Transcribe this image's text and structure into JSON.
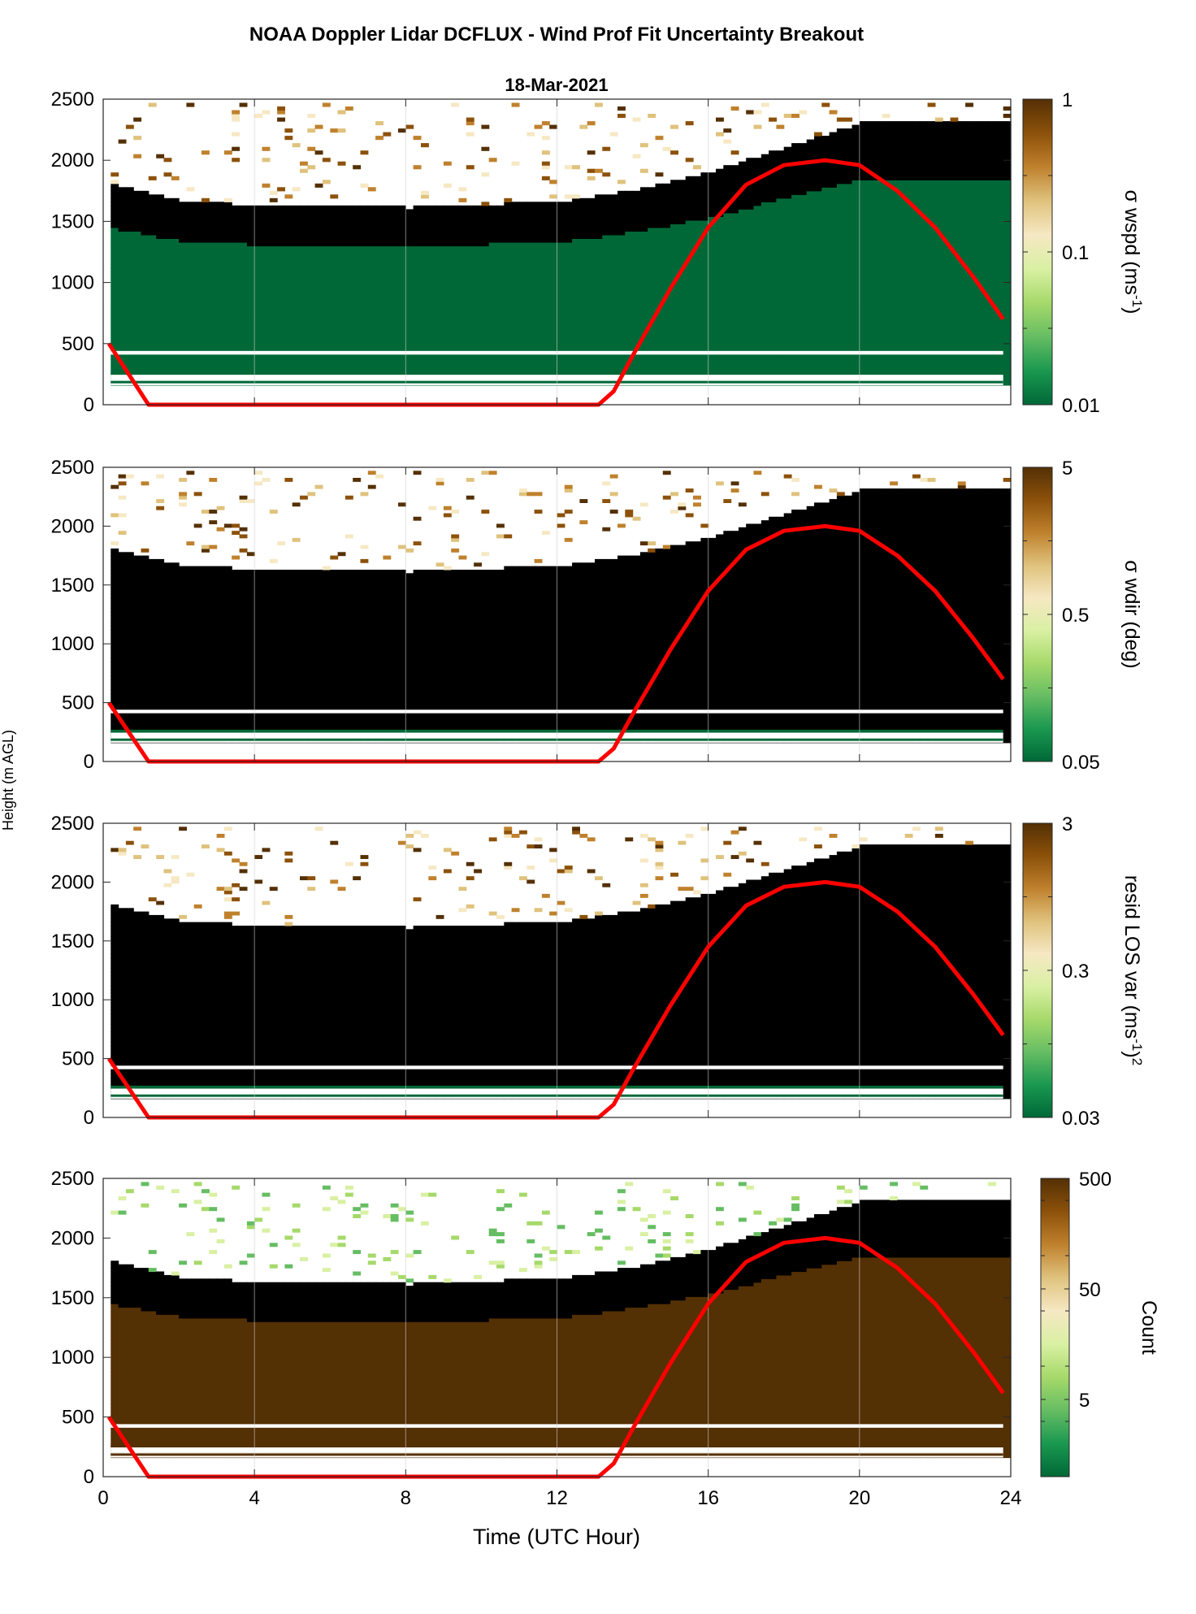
{
  "figure": {
    "title": "NOAA Doppler Lidar DCFLUX - Wind Prof Fit Uncertainty Breakout",
    "subtitle": "18-Mar-2021",
    "xlabel": "Time (UTC Hour)",
    "ylabel": "Height (m AGL)"
  },
  "colors": {
    "overlay_line": "#ff0000",
    "colormap": [
      "#006837",
      "#1a9850",
      "#66bd63",
      "#a6d96a",
      "#d9f0a3",
      "#f6e8c3",
      "#dfc27d",
      "#bf812d",
      "#8c510a",
      "#543005"
    ]
  },
  "chart_data": [
    {
      "type": "heatmap",
      "panel": "wspd",
      "ylabel": "σ wspd (ms-1)",
      "colorbar_label_main": "σ wspd (ms",
      "colorbar_label_sup": "-1",
      "colorbar_label_end": ")",
      "colorbar_scale": "log",
      "colorbar_range": [
        0.01,
        1
      ],
      "colorbar_ticks": [
        "1",
        "0.1",
        "0.01"
      ],
      "xlim": [
        0,
        24
      ],
      "ylim": [
        0,
        2500
      ],
      "yticks": [
        "0",
        "500",
        "1000",
        "1500",
        "2000",
        "2500"
      ],
      "grid": true,
      "invalid_bands_m": [
        [
          175,
          195
        ],
        [
          245,
          265
        ],
        [
          410,
          440
        ]
      ],
      "top_boundary_m": [
        {
          "x": 0,
          "y": 1800
        },
        {
          "x": 2,
          "y": 1650
        },
        {
          "x": 4,
          "y": 1620
        },
        {
          "x": 8,
          "y": 1600
        },
        {
          "x": 12,
          "y": 1650
        },
        {
          "x": 14,
          "y": 1750
        },
        {
          "x": 16,
          "y": 1900
        },
        {
          "x": 18,
          "y": 2100
        },
        {
          "x": 20,
          "y": 2300
        },
        {
          "x": 24,
          "y": 2300
        }
      ]
    },
    {
      "type": "heatmap",
      "panel": "wdir",
      "ylabel": "σ wdir (deg)",
      "colorbar_label_main": "σ wdir (deg)",
      "colorbar_label_sup": "",
      "colorbar_label_end": "",
      "colorbar_scale": "log",
      "colorbar_range": [
        0.05,
        5
      ],
      "colorbar_ticks": [
        "5",
        "0.5",
        "0.05"
      ],
      "xlim": [
        0,
        24
      ],
      "ylim": [
        0,
        2500
      ],
      "yticks": [
        "0",
        "500",
        "1000",
        "1500",
        "2000",
        "2500"
      ],
      "grid": true,
      "invalid_bands_m": [
        [
          175,
          195
        ],
        [
          245,
          265
        ],
        [
          410,
          440
        ]
      ],
      "top_boundary_m": [
        {
          "x": 0,
          "y": 1800
        },
        {
          "x": 2,
          "y": 1650
        },
        {
          "x": 4,
          "y": 1620
        },
        {
          "x": 8,
          "y": 1600
        },
        {
          "x": 12,
          "y": 1650
        },
        {
          "x": 14,
          "y": 1750
        },
        {
          "x": 16,
          "y": 1900
        },
        {
          "x": 18,
          "y": 2100
        },
        {
          "x": 20,
          "y": 2300
        },
        {
          "x": 24,
          "y": 2300
        }
      ]
    },
    {
      "type": "heatmap",
      "panel": "resid",
      "ylabel": "resid LOS var (ms-1)2",
      "colorbar_label_main": "resid LOS var (ms",
      "colorbar_label_sup": "-1",
      "colorbar_label_end": ")",
      "colorbar_label_sup2": "2",
      "colorbar_scale": "log",
      "colorbar_range": [
        0.03,
        3
      ],
      "colorbar_ticks": [
        "3",
        "0.3",
        "0.03"
      ],
      "xlim": [
        0,
        24
      ],
      "ylim": [
        0,
        2500
      ],
      "yticks": [
        "0",
        "500",
        "1000",
        "1500",
        "2000",
        "2500"
      ],
      "grid": true,
      "invalid_bands_m": [
        [
          175,
          195
        ],
        [
          245,
          265
        ],
        [
          410,
          440
        ]
      ],
      "top_boundary_m": [
        {
          "x": 0,
          "y": 1800
        },
        {
          "x": 2,
          "y": 1650
        },
        {
          "x": 4,
          "y": 1620
        },
        {
          "x": 8,
          "y": 1600
        },
        {
          "x": 12,
          "y": 1650
        },
        {
          "x": 14,
          "y": 1750
        },
        {
          "x": 16,
          "y": 1900
        },
        {
          "x": 18,
          "y": 2100
        },
        {
          "x": 20,
          "y": 2300
        },
        {
          "x": 24,
          "y": 2300
        }
      ]
    },
    {
      "type": "heatmap",
      "panel": "count",
      "ylabel": "Count",
      "colorbar_label_main": "Count",
      "colorbar_label_sup": "",
      "colorbar_label_end": "",
      "colorbar_scale": "log",
      "colorbar_range": [
        1,
        500
      ],
      "colorbar_ticks": [
        "500",
        "50",
        "5"
      ],
      "xlim": [
        0,
        24
      ],
      "ylim": [
        0,
        2500
      ],
      "yticks": [
        "0",
        "500",
        "1000",
        "1500",
        "2000",
        "2500"
      ],
      "xticks": [
        "0",
        "4",
        "8",
        "12",
        "16",
        "20",
        "24"
      ],
      "grid": true,
      "invalid_bands_m": [
        [
          175,
          195
        ],
        [
          245,
          265
        ],
        [
          410,
          440
        ]
      ],
      "top_boundary_m": [
        {
          "x": 0,
          "y": 1800
        },
        {
          "x": 2,
          "y": 1650
        },
        {
          "x": 4,
          "y": 1620
        },
        {
          "x": 8,
          "y": 1600
        },
        {
          "x": 12,
          "y": 1650
        },
        {
          "x": 14,
          "y": 1750
        },
        {
          "x": 16,
          "y": 1900
        },
        {
          "x": 18,
          "y": 2100
        },
        {
          "x": 20,
          "y": 2300
        },
        {
          "x": 24,
          "y": 2300
        }
      ]
    }
  ],
  "overlay_line": {
    "name": "",
    "x": [
      0.15,
      1.2,
      13.1,
      13.5,
      14,
      15,
      16,
      17,
      18,
      19.1,
      20,
      21,
      22,
      23,
      23.8
    ],
    "y": [
      500,
      0,
      0,
      110,
      400,
      950,
      1450,
      1800,
      1960,
      2000,
      1960,
      1750,
      1450,
      1050,
      700
    ]
  }
}
